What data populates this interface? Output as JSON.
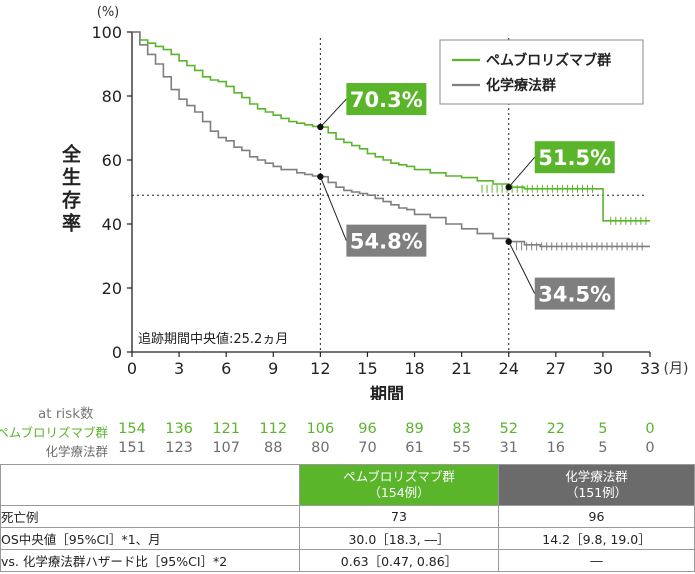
{
  "chart_data": {
    "type": "line",
    "title": "",
    "ylabel": "全生存率",
    "y_unit": "(%)",
    "xlabel": "期間",
    "x_unit": "(月)",
    "xlim": [
      0,
      33
    ],
    "ylim": [
      0,
      100
    ],
    "xticks": [
      0,
      3,
      6,
      9,
      12,
      15,
      18,
      21,
      24,
      27,
      30,
      33
    ],
    "yticks": [
      0,
      20,
      40,
      60,
      80,
      100
    ],
    "legend_position": "top-right",
    "reference_line_y": 49,
    "reference_lines_x": [
      12,
      24
    ],
    "followup_note": "追跡期間中央値:25.2ヵ月",
    "series": [
      {
        "name": "ペムブロリズマブ群",
        "color": "#5ab52b",
        "x": [
          0,
          0.5,
          1,
          1.5,
          2,
          2.5,
          3,
          3.5,
          4,
          4.5,
          5,
          5.5,
          6,
          6.5,
          7,
          7.5,
          8,
          8.5,
          9,
          9.5,
          10,
          10.5,
          11,
          11.5,
          12,
          12.5,
          13,
          13.5,
          14,
          14.5,
          15,
          15.5,
          16,
          16.5,
          17,
          17.5,
          18,
          19,
          20,
          21,
          22,
          23,
          24,
          25,
          26,
          27,
          28,
          29,
          30,
          30.01,
          31,
          32,
          33
        ],
        "y": [
          100,
          97.5,
          96.5,
          95.5,
          94.5,
          93,
          91,
          89.5,
          88,
          86,
          85,
          84.5,
          83,
          81,
          79.5,
          77.5,
          76,
          75,
          74,
          73,
          72,
          71.5,
          71,
          70.5,
          70.3,
          68.5,
          66.5,
          65.5,
          64.5,
          63.5,
          62,
          61,
          60,
          59,
          58.5,
          58,
          57,
          56,
          55,
          54.5,
          53.5,
          52.5,
          51.5,
          51,
          51,
          51,
          51,
          51,
          51,
          41,
          41,
          41,
          41
        ]
      },
      {
        "name": "化学療法群",
        "color": "#7f7f7f",
        "x": [
          0,
          0.5,
          1,
          1.5,
          2,
          2.5,
          3,
          3.5,
          4,
          4.5,
          5,
          5.5,
          6,
          6.5,
          7,
          7.5,
          8,
          8.5,
          9,
          9.5,
          10,
          10.5,
          11,
          11.5,
          12,
          12.5,
          13,
          13.5,
          14,
          14.5,
          15,
          15.5,
          16,
          16.5,
          17,
          17.5,
          18,
          19,
          20,
          21,
          22,
          23,
          24,
          25,
          26,
          27,
          28,
          29,
          30,
          31,
          32,
          33
        ],
        "y": [
          100,
          96,
          93,
          90,
          86,
          82,
          79,
          77,
          75,
          72,
          69,
          67,
          66,
          64,
          63,
          61,
          60,
          59,
          58,
          57,
          57,
          56,
          55.5,
          55,
          54.8,
          53,
          51.5,
          50.5,
          50,
          49.5,
          49,
          48,
          47,
          46,
          45,
          44.5,
          43,
          42,
          40,
          38.5,
          37,
          35.5,
          34.5,
          33.5,
          33,
          33,
          33,
          33,
          33,
          33,
          33,
          33
        ]
      }
    ],
    "annotations": [
      {
        "label": "70.3%",
        "x": 12,
        "y": 70.3,
        "series": "ペムブロリズマブ群"
      },
      {
        "label": "54.8%",
        "x": 12,
        "y": 54.8,
        "series": "化学療法群"
      },
      {
        "label": "51.5%",
        "x": 24,
        "y": 51.5,
        "series": "ペムブロリズマブ群"
      },
      {
        "label": "34.5%",
        "x": 24,
        "y": 34.5,
        "series": "化学療法群"
      }
    ],
    "censor_marks": [
      {
        "series": "ペムブロリズマブ群",
        "x_from": 22.3,
        "x_to": 29.5,
        "y": 51
      },
      {
        "series": "ペムブロリズマブ群",
        "x_from": 30.5,
        "x_to": 32.8,
        "y": 41
      },
      {
        "series": "化学療法群",
        "x_from": 24.5,
        "x_to": 32.6,
        "y": 33
      }
    ]
  },
  "at_risk": {
    "title": "at risk数",
    "times": [
      0,
      3,
      6,
      9,
      12,
      15,
      18,
      21,
      24,
      27,
      30,
      33
    ],
    "rows": [
      {
        "label": "ペムブロリズマブ群",
        "values": [
          "154",
          "136",
          "121",
          "112",
          "106",
          "96",
          "89",
          "83",
          "52",
          "22",
          "5",
          "0"
        ]
      },
      {
        "label": "化学療法群",
        "values": [
          "151",
          "123",
          "107",
          "88",
          "80",
          "70",
          "61",
          "55",
          "31",
          "16",
          "5",
          "0"
        ]
      }
    ]
  },
  "table": {
    "headers": [
      {
        "line1": "ペムブロリズマブ群",
        "line2": "（154例）"
      },
      {
        "line1": "化学療法群",
        "line2": "（151例）"
      }
    ],
    "rows": [
      {
        "label": "死亡例",
        "pembro": "73",
        "chemo": "96"
      },
      {
        "label": "OS中央値［95%CI］*1、月",
        "pembro": "30.0［18.3, ―］",
        "chemo": "14.2［9.8, 19.0］"
      },
      {
        "label": "vs. 化学療法群ハザード比［95%CI］*2",
        "pembro": "0.63［0.47, 0.86］",
        "chemo": "―"
      }
    ]
  }
}
